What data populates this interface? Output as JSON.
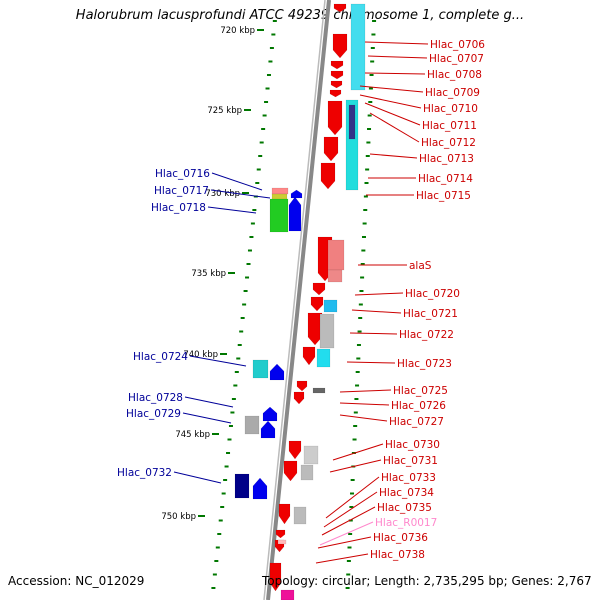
{
  "title": "Halorubrum lacusprofundi ATCC 49239 chromosome 1, complete g...",
  "footer": {
    "accession": "Accession: NC_012029",
    "topology": "Topology: circular; Length: 2,735,295 bp; Genes: 2,767"
  },
  "colors": {
    "backbone": "#888888",
    "tick": "#007700",
    "label_right": "#cc0000",
    "label_left": "#000099",
    "rna_label": "#ff88cc"
  },
  "scale_labels": [
    "720 kbp",
    "725 kbp",
    "730 kbp",
    "735 kbp",
    "740 kbp",
    "745 kbp",
    "750 kbp"
  ],
  "right_labels": [
    "Hlac_0706",
    "Hlac_0707",
    "Hlac_0708",
    "Hlac_0709",
    "Hlac_0710",
    "Hlac_0711",
    "Hlac_0712",
    "Hlac_0713",
    "Hlac_0714",
    "Hlac_0715",
    "alaS",
    "Hlac_0720",
    "Hlac_0721",
    "Hlac_0722",
    "Hlac_0723",
    "Hlac_0725",
    "Hlac_0726",
    "Hlac_0727",
    "Hlac_0730",
    "Hlac_0731",
    "Hlac_0733",
    "Hlac_0734",
    "Hlac_0735",
    "Hlac_R0017",
    "Hlac_0736",
    "Hlac_0738"
  ],
  "left_labels": [
    "Hlac_0716",
    "Hlac_0717",
    "Hlac_0718",
    "Hlac_0724",
    "Hlac_0728",
    "Hlac_0729",
    "Hlac_0732"
  ]
}
